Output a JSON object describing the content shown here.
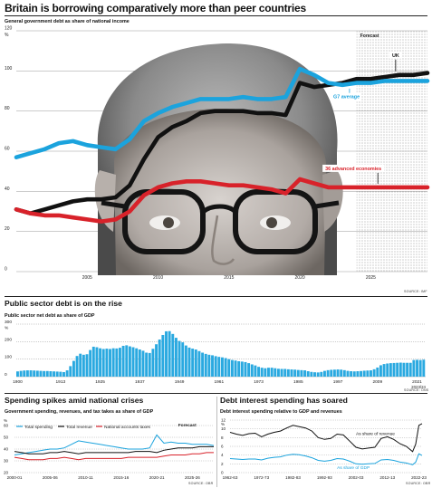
{
  "page": {
    "headline": "Britain is borrowing comparatively more than peer countries"
  },
  "colors": {
    "uk": "#111111",
    "g7": "#1ba3dd",
    "advanced": "#d8222a",
    "bars": "#2aa9e0",
    "grid": "#9a9a9a"
  },
  "portrait": {
    "description_icon": "portrait-photo"
  },
  "chart_data": [
    {
      "id": "main",
      "type": "line",
      "subtitle": "General government debt as share of national income",
      "y_unit": "%",
      "ylim": [
        0,
        120
      ],
      "yticks": [
        0,
        20,
        40,
        60,
        80,
        100,
        120
      ],
      "xlim": [
        2000,
        2029
      ],
      "xticks": [
        2005,
        2010,
        2015,
        2020,
        2025
      ],
      "forecast_label": "Forecast",
      "forecast_start": 2024,
      "source": "SOURCE: IMF",
      "series": [
        {
          "name": "UK",
          "color": "#111111",
          "x": [
            2000,
            2001,
            2002,
            2003,
            2004,
            2005,
            2006,
            2007,
            2008,
            2009,
            2010,
            2011,
            2012,
            2013,
            2014,
            2015,
            2016,
            2017,
            2018,
            2019,
            2020,
            2021,
            2022,
            2023,
            2024,
            2025,
            2026,
            2027,
            2028,
            2029
          ],
          "y": [
            31,
            29,
            31,
            33,
            35,
            36,
            36,
            37,
            43,
            56,
            67,
            72,
            75,
            79,
            80,
            80,
            80,
            79,
            79,
            78,
            94,
            92,
            93,
            94,
            96,
            96,
            97,
            98,
            98,
            99
          ]
        },
        {
          "name": "G7 average",
          "color": "#1ba3dd",
          "x": [
            2000,
            2001,
            2002,
            2003,
            2004,
            2005,
            2006,
            2007,
            2008,
            2009,
            2010,
            2011,
            2012,
            2013,
            2014,
            2015,
            2016,
            2017,
            2018,
            2019,
            2020,
            2021,
            2022,
            2023,
            2024,
            2025,
            2026,
            2027,
            2028,
            2029
          ],
          "y": [
            57,
            59,
            61,
            64,
            65,
            63,
            62,
            61,
            66,
            75,
            79,
            82,
            84,
            86,
            86,
            86,
            87,
            86,
            86,
            87,
            101,
            98,
            94,
            93,
            94,
            94,
            95,
            95,
            95,
            95
          ]
        },
        {
          "name": "36 advanced economies",
          "color": "#d8222a",
          "x": [
            2000,
            2001,
            2002,
            2003,
            2004,
            2005,
            2006,
            2007,
            2008,
            2009,
            2010,
            2011,
            2012,
            2013,
            2014,
            2015,
            2016,
            2017,
            2018,
            2019,
            2020,
            2021,
            2022,
            2023,
            2024,
            2025,
            2026,
            2027,
            2028,
            2029
          ],
          "y": [
            31,
            29,
            28,
            28,
            27,
            26,
            25,
            26,
            30,
            38,
            42,
            44,
            45,
            45,
            44,
            43,
            43,
            42,
            41,
            39,
            46,
            44,
            42,
            42,
            42,
            42,
            42,
            42,
            42,
            42
          ]
        }
      ]
    },
    {
      "id": "psnd",
      "type": "bar",
      "title": "Public sector debt is on the rise",
      "subtitle": "Public sector net debt as share of GDP",
      "y_unit": "%",
      "ylim": [
        0,
        300
      ],
      "yticks": [
        0,
        100,
        200,
        300
      ],
      "xticks": [
        "1900",
        "1913",
        "1925",
        "1937",
        "1949",
        "1961",
        "1973",
        "1985",
        "1997",
        "2009",
        "2021"
      ],
      "last_label": "2023/24",
      "source": "SOURCE: ONS",
      "x": [
        1900,
        1901,
        1902,
        1903,
        1904,
        1905,
        1906,
        1907,
        1908,
        1909,
        1910,
        1911,
        1912,
        1913,
        1914,
        1915,
        1916,
        1917,
        1918,
        1919,
        1920,
        1921,
        1922,
        1923,
        1924,
        1925,
        1926,
        1927,
        1928,
        1929,
        1930,
        1931,
        1932,
        1933,
        1934,
        1935,
        1936,
        1937,
        1938,
        1939,
        1940,
        1941,
        1942,
        1943,
        1944,
        1945,
        1946,
        1947,
        1948,
        1949,
        1950,
        1951,
        1952,
        1953,
        1954,
        1955,
        1956,
        1957,
        1958,
        1959,
        1960,
        1961,
        1962,
        1963,
        1964,
        1965,
        1966,
        1967,
        1968,
        1969,
        1970,
        1971,
        1972,
        1973,
        1974,
        1975,
        1976,
        1977,
        1978,
        1979,
        1980,
        1981,
        1982,
        1983,
        1984,
        1985,
        1986,
        1987,
        1988,
        1989,
        1990,
        1991,
        1992,
        1993,
        1994,
        1995,
        1996,
        1997,
        1998,
        1999,
        2000,
        2001,
        2002,
        2003,
        2004,
        2005,
        2006,
        2007,
        2008,
        2009,
        2010,
        2011,
        2012,
        2013,
        2014,
        2015,
        2016,
        2017,
        2018,
        2019,
        2020,
        2021,
        2022,
        2023
      ],
      "values": [
        30,
        33,
        35,
        36,
        36,
        35,
        34,
        33,
        32,
        32,
        31,
        30,
        29,
        28,
        26,
        36,
        60,
        90,
        118,
        131,
        125,
        128,
        152,
        171,
        168,
        162,
        158,
        160,
        158,
        162,
        161,
        165,
        176,
        179,
        173,
        168,
        162,
        155,
        148,
        137,
        135,
        159,
        185,
        212,
        238,
        259,
        260,
        244,
        222,
        204,
        196,
        178,
        166,
        160,
        155,
        146,
        137,
        130,
        125,
        122,
        117,
        113,
        110,
        106,
        100,
        95,
        92,
        88,
        86,
        83,
        77,
        70,
        64,
        56,
        51,
        48,
        51,
        51,
        48,
        45,
        44,
        44,
        42,
        41,
        40,
        38,
        37,
        36,
        31,
        27,
        25,
        24,
        27,
        33,
        37,
        39,
        40,
        41,
        40,
        37,
        33,
        31,
        30,
        31,
        32,
        34,
        35,
        36,
        42,
        52,
        65,
        72,
        75,
        77,
        78,
        79,
        80,
        79,
        79,
        79,
        95,
        96,
        95,
        97
      ]
    },
    {
      "id": "spending",
      "type": "line",
      "title": "Spending spikes amid national crises",
      "subtitle": "Government spending, revenues, and tax takes as share of GDP",
      "y_unit": "%",
      "ylim": [
        20,
        60
      ],
      "yticks": [
        20,
        30,
        40,
        50,
        60
      ],
      "xticks": [
        "2000-01",
        "2005-06",
        "2010-11",
        "2015-16",
        "2020-21",
        "2025-26"
      ],
      "forecast_label": "Forecast",
      "source": "SOURCE: OBR",
      "series": [
        {
          "name": "Total spending",
          "color": "#1ba3dd",
          "x": [
            2000,
            2001,
            2002,
            2003,
            2004,
            2005,
            2006,
            2007,
            2008,
            2009,
            2010,
            2011,
            2012,
            2013,
            2014,
            2015,
            2016,
            2017,
            2018,
            2019,
            2020,
            2021,
            2022,
            2023,
            2024,
            2025,
            2026,
            2027,
            2028
          ],
          "y": [
            35,
            36,
            37,
            38,
            39,
            40,
            40,
            41,
            44,
            47,
            46,
            45,
            44,
            43,
            42,
            41,
            40,
            40,
            40,
            41,
            52,
            45,
            46,
            45,
            45,
            44,
            44,
            44,
            43
          ]
        },
        {
          "name": "Total revenue",
          "color": "#111111",
          "x": [
            2000,
            2001,
            2002,
            2003,
            2004,
            2005,
            2006,
            2007,
            2008,
            2009,
            2010,
            2011,
            2012,
            2013,
            2014,
            2015,
            2016,
            2017,
            2018,
            2019,
            2020,
            2021,
            2022,
            2023,
            2024,
            2025,
            2026,
            2027,
            2028
          ],
          "y": [
            38,
            37,
            36,
            36,
            36,
            37,
            37,
            38,
            37,
            36,
            37,
            37,
            37,
            37,
            37,
            37,
            37,
            38,
            38,
            38,
            37,
            39,
            40,
            41,
            41,
            41,
            42,
            42,
            42
          ]
        },
        {
          "name": "National accounts taxes",
          "color": "#d8222a",
          "x": [
            2000,
            2001,
            2002,
            2003,
            2004,
            2005,
            2006,
            2007,
            2008,
            2009,
            2010,
            2011,
            2012,
            2013,
            2014,
            2015,
            2016,
            2017,
            2018,
            2019,
            2020,
            2021,
            2022,
            2023,
            2024,
            2025,
            2026,
            2027,
            2028
          ],
          "y": [
            33,
            32,
            31,
            31,
            31,
            32,
            32,
            33,
            32,
            31,
            32,
            32,
            32,
            32,
            32,
            32,
            33,
            33,
            33,
            33,
            33,
            34,
            35,
            35,
            35,
            36,
            36,
            37,
            37
          ]
        }
      ]
    },
    {
      "id": "interest",
      "type": "line",
      "title": "Debt interest spending has soared",
      "subtitle": "Debt interest spending relative to GDP and revenues",
      "y_unit": "%",
      "ylim": [
        0,
        12
      ],
      "yticks": [
        0,
        2,
        4,
        6,
        8,
        10,
        12
      ],
      "xticks": [
        "1962-63",
        "1972-73",
        "1982-83",
        "1992-93",
        "2002-03",
        "2012-13",
        "2022-23"
      ],
      "source": "SOURCE: OBR",
      "series": [
        {
          "name": "As share of revenue",
          "color": "#111111",
          "x": [
            1962,
            1964,
            1966,
            1968,
            1970,
            1972,
            1974,
            1976,
            1978,
            1980,
            1982,
            1984,
            1986,
            1988,
            1990,
            1992,
            1994,
            1996,
            1998,
            2000,
            2002,
            2004,
            2006,
            2008,
            2010,
            2012,
            2014,
            2016,
            2018,
            2020,
            2021,
            2022,
            2023
          ],
          "y": [
            9.2,
            8.8,
            8.5,
            8.9,
            9.0,
            8.2,
            8.8,
            9.2,
            9.5,
            10.2,
            10.8,
            10.5,
            10.2,
            9.5,
            8.0,
            7.6,
            7.8,
            8.8,
            8.6,
            7.2,
            5.8,
            5.4,
            5.6,
            5.8,
            7.8,
            8.2,
            7.6,
            6.6,
            6.0,
            4.8,
            6.5,
            10.8,
            11.2
          ]
        },
        {
          "name": "As share of GDP",
          "color": "#1ba3dd",
          "x": [
            1962,
            1964,
            1966,
            1968,
            1970,
            1972,
            1974,
            1976,
            1978,
            1980,
            1982,
            1984,
            1986,
            1988,
            1990,
            1992,
            1994,
            1996,
            1998,
            2000,
            2002,
            2004,
            2006,
            2008,
            2010,
            2012,
            2014,
            2016,
            2018,
            2020,
            2021,
            2022,
            2023
          ],
          "y": [
            3.2,
            3.1,
            3.0,
            3.1,
            3.1,
            2.9,
            3.3,
            3.5,
            3.6,
            4.0,
            4.2,
            4.1,
            3.8,
            3.4,
            2.8,
            2.6,
            2.8,
            3.2,
            3.1,
            2.6,
            2.0,
            1.9,
            2.0,
            2.1,
            2.9,
            3.0,
            2.8,
            2.4,
            2.2,
            1.8,
            2.4,
            4.3,
            3.9
          ]
        }
      ]
    }
  ]
}
